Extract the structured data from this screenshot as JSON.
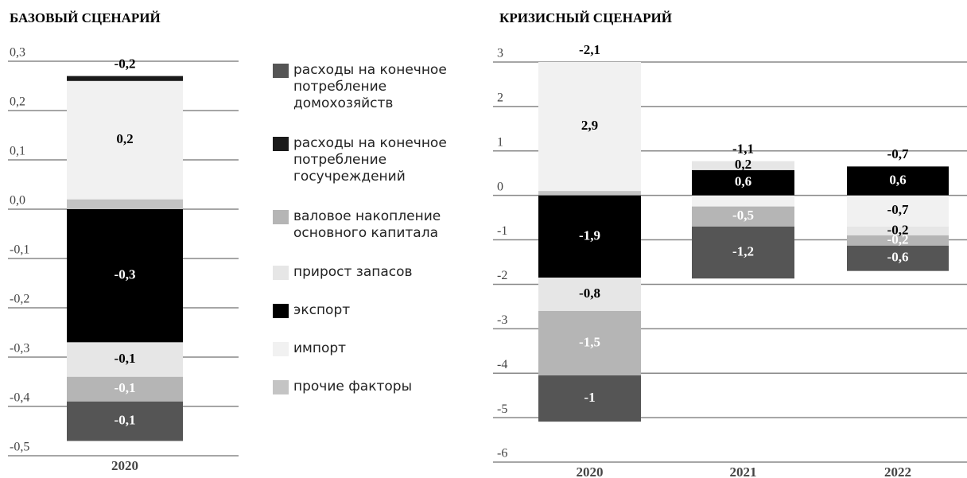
{
  "chart_data": [
    {
      "type": "stacked_bar",
      "title": "БАЗОВЫЙ СЦЕНАРИЙ",
      "categories": [
        "2020"
      ],
      "ylim": [
        -0.5,
        0.3
      ],
      "yticks": [
        {
          "value": 0.3,
          "label": "0,3"
        },
        {
          "value": 0.2,
          "label": "0,2"
        },
        {
          "value": 0.1,
          "label": "0,1"
        },
        {
          "value": 0,
          "label": "0,0"
        },
        {
          "value": -0.1,
          "label": "-0,1"
        },
        {
          "value": -0.2,
          "label": "-0,2"
        },
        {
          "value": -0.3,
          "label": "-0,3"
        },
        {
          "value": -0.4,
          "label": "-0,4"
        },
        {
          "value": -0.5,
          "label": "-0,5"
        }
      ],
      "grid": true,
      "legend": "right",
      "series": [
        {
          "name": "расходы на конечное потребление домохозяйств",
          "color": "#555555",
          "values": [
            -0.08
          ],
          "value_labels": [
            "-0,1"
          ]
        },
        {
          "name": "расходы на конечное потребление госучреждений",
          "color": "#1a1a1a",
          "values": [
            0.01
          ],
          "value_labels": [
            null
          ]
        },
        {
          "name": "валовое накопление основного капитала",
          "color": "#b5b5b5",
          "values": [
            -0.05
          ],
          "value_labels": [
            "-0,1"
          ]
        },
        {
          "name": "прирост запасов",
          "color": "#e6e6e6",
          "values": [
            -0.07
          ],
          "value_labels": [
            "-0,1"
          ]
        },
        {
          "name": "экспорт",
          "color": "#000000",
          "values": [
            -0.27
          ],
          "value_labels": [
            "-0,3"
          ]
        },
        {
          "name": "импорт",
          "color": "#f1f1f1",
          "values": [
            0.24
          ],
          "value_labels": [
            "0,2"
          ]
        },
        {
          "name": "прочие факторы",
          "color": "#c4c4c4",
          "values": [
            0.02
          ],
          "value_labels": [
            null
          ]
        }
      ],
      "totals": [
        -0.2
      ],
      "total_labels": [
        "-0,2"
      ]
    },
    {
      "type": "stacked_bar",
      "title": "КРИЗИСНЫЙ СЦЕНАРИЙ",
      "categories": [
        "2020",
        "2021",
        "2022"
      ],
      "ylim": [
        -6,
        3
      ],
      "yticks": [
        3,
        2,
        1,
        0,
        -1,
        -2,
        -3,
        -4,
        -5,
        -6
      ],
      "grid": true,
      "series": [
        {
          "name": "расходы на конечное потребление домохозяйств",
          "color": "#555555",
          "values": [
            -1.04,
            -1.17,
            -0.57
          ],
          "value_labels": [
            "-1",
            "-1,2",
            "-0,6"
          ]
        },
        {
          "name": "расходы на конечное потребление госучреждений",
          "color": "#1a1a1a",
          "values": [
            null,
            null,
            null
          ],
          "value_labels": [
            null,
            null,
            null
          ]
        },
        {
          "name": "валовое накопление основного капитала",
          "color": "#b5b5b5",
          "values": [
            -1.45,
            -0.45,
            -0.23
          ],
          "value_labels": [
            "-1,5",
            "-0,5",
            "-0,2"
          ]
        },
        {
          "name": "прирост запасов",
          "color": "#e6e6e6",
          "values": [
            -0.75,
            0.2,
            -0.2
          ],
          "value_labels": [
            "-0,8",
            "0,2",
            "-0,2"
          ]
        },
        {
          "name": "экспорт",
          "color": "#000000",
          "values": [
            -1.85,
            0.57,
            0.65
          ],
          "value_labels": [
            "-1,9",
            "0,6",
            "0,6"
          ]
        },
        {
          "name": "импорт",
          "color": "#f1f1f1",
          "values": [
            2.9,
            -0.25,
            -0.7
          ],
          "value_labels": [
            "2,9",
            null,
            "-0,7"
          ]
        },
        {
          "name": "прочие факторы",
          "color": "#c4c4c4",
          "values": [
            0.1,
            null,
            null
          ],
          "value_labels": [
            null,
            null,
            null
          ]
        }
      ],
      "totals": [
        -2.1,
        -1.1,
        -0.7
      ],
      "total_labels": [
        "-2,1",
        "-1,1",
        "-0,7"
      ]
    }
  ]
}
